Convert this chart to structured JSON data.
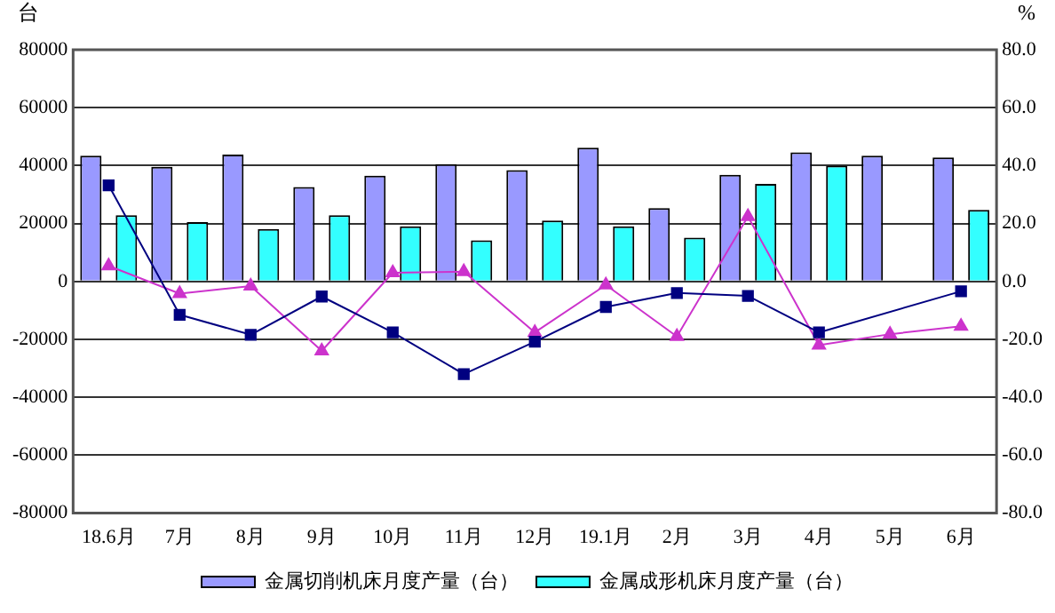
{
  "chart_data": {
    "type": "bar",
    "ylabel": "台",
    "y2label": "%",
    "categories": [
      "18.6月",
      "7月",
      "8月",
      "9月",
      "10月",
      "11月",
      "12月",
      "19.1月",
      "2月",
      "3月",
      "4月",
      "5月",
      "6月"
    ],
    "series": [
      {
        "name": "金属切削机床月度产量（台）",
        "color": "#9999ff",
        "values": [
          43400,
          39600,
          43800,
          32600,
          36500,
          40500,
          38400,
          46200,
          25300,
          36800,
          44600,
          43400,
          42800
        ]
      },
      {
        "name": "金属成形机床月度产量（台）",
        "color": "#33ffff",
        "values": [
          22900,
          20500,
          18100,
          22900,
          19000,
          14200,
          21000,
          19000,
          15100,
          33700,
          40000,
          null,
          24700
        ]
      },
      {
        "type": "line",
        "axis": "y2",
        "marker": "square",
        "color": "#000080",
        "values": [
          33.2,
          -11.5,
          -18.4,
          -5.2,
          -17.6,
          -32.0,
          -20.8,
          -8.8,
          -4.0,
          -5.0,
          -17.6,
          null,
          -3.4
        ]
      },
      {
        "type": "line",
        "axis": "y2",
        "marker": "triangle",
        "color": "#cc33cc",
        "values": [
          5.4,
          -4.2,
          -1.6,
          -24.0,
          3.0,
          3.4,
          -17.6,
          -1.2,
          -19.0,
          22.4,
          -22.0,
          -18.2,
          -15.5
        ]
      }
    ],
    "ylim": [
      -80000,
      80000
    ],
    "yticks": [
      -80000,
      -60000,
      -40000,
      -20000,
      0,
      20000,
      40000,
      60000,
      80000
    ],
    "y2lim": [
      -80,
      80
    ],
    "y2ticks": [
      {
        "value": -80,
        "label": "-80.0"
      },
      {
        "value": -60,
        "label": "-60.0"
      },
      {
        "value": -40,
        "label": "-40.0"
      },
      {
        "value": -20,
        "label": "-20.0"
      },
      {
        "value": 0,
        "label": "0.0"
      },
      {
        "value": 20,
        "label": "20.0"
      },
      {
        "value": 40,
        "label": "40.0"
      },
      {
        "value": 60,
        "label": "60.0"
      },
      {
        "value": 80,
        "label": "80.0"
      }
    ],
    "grid": "y",
    "legend": "bottom",
    "line_style": "solid"
  }
}
